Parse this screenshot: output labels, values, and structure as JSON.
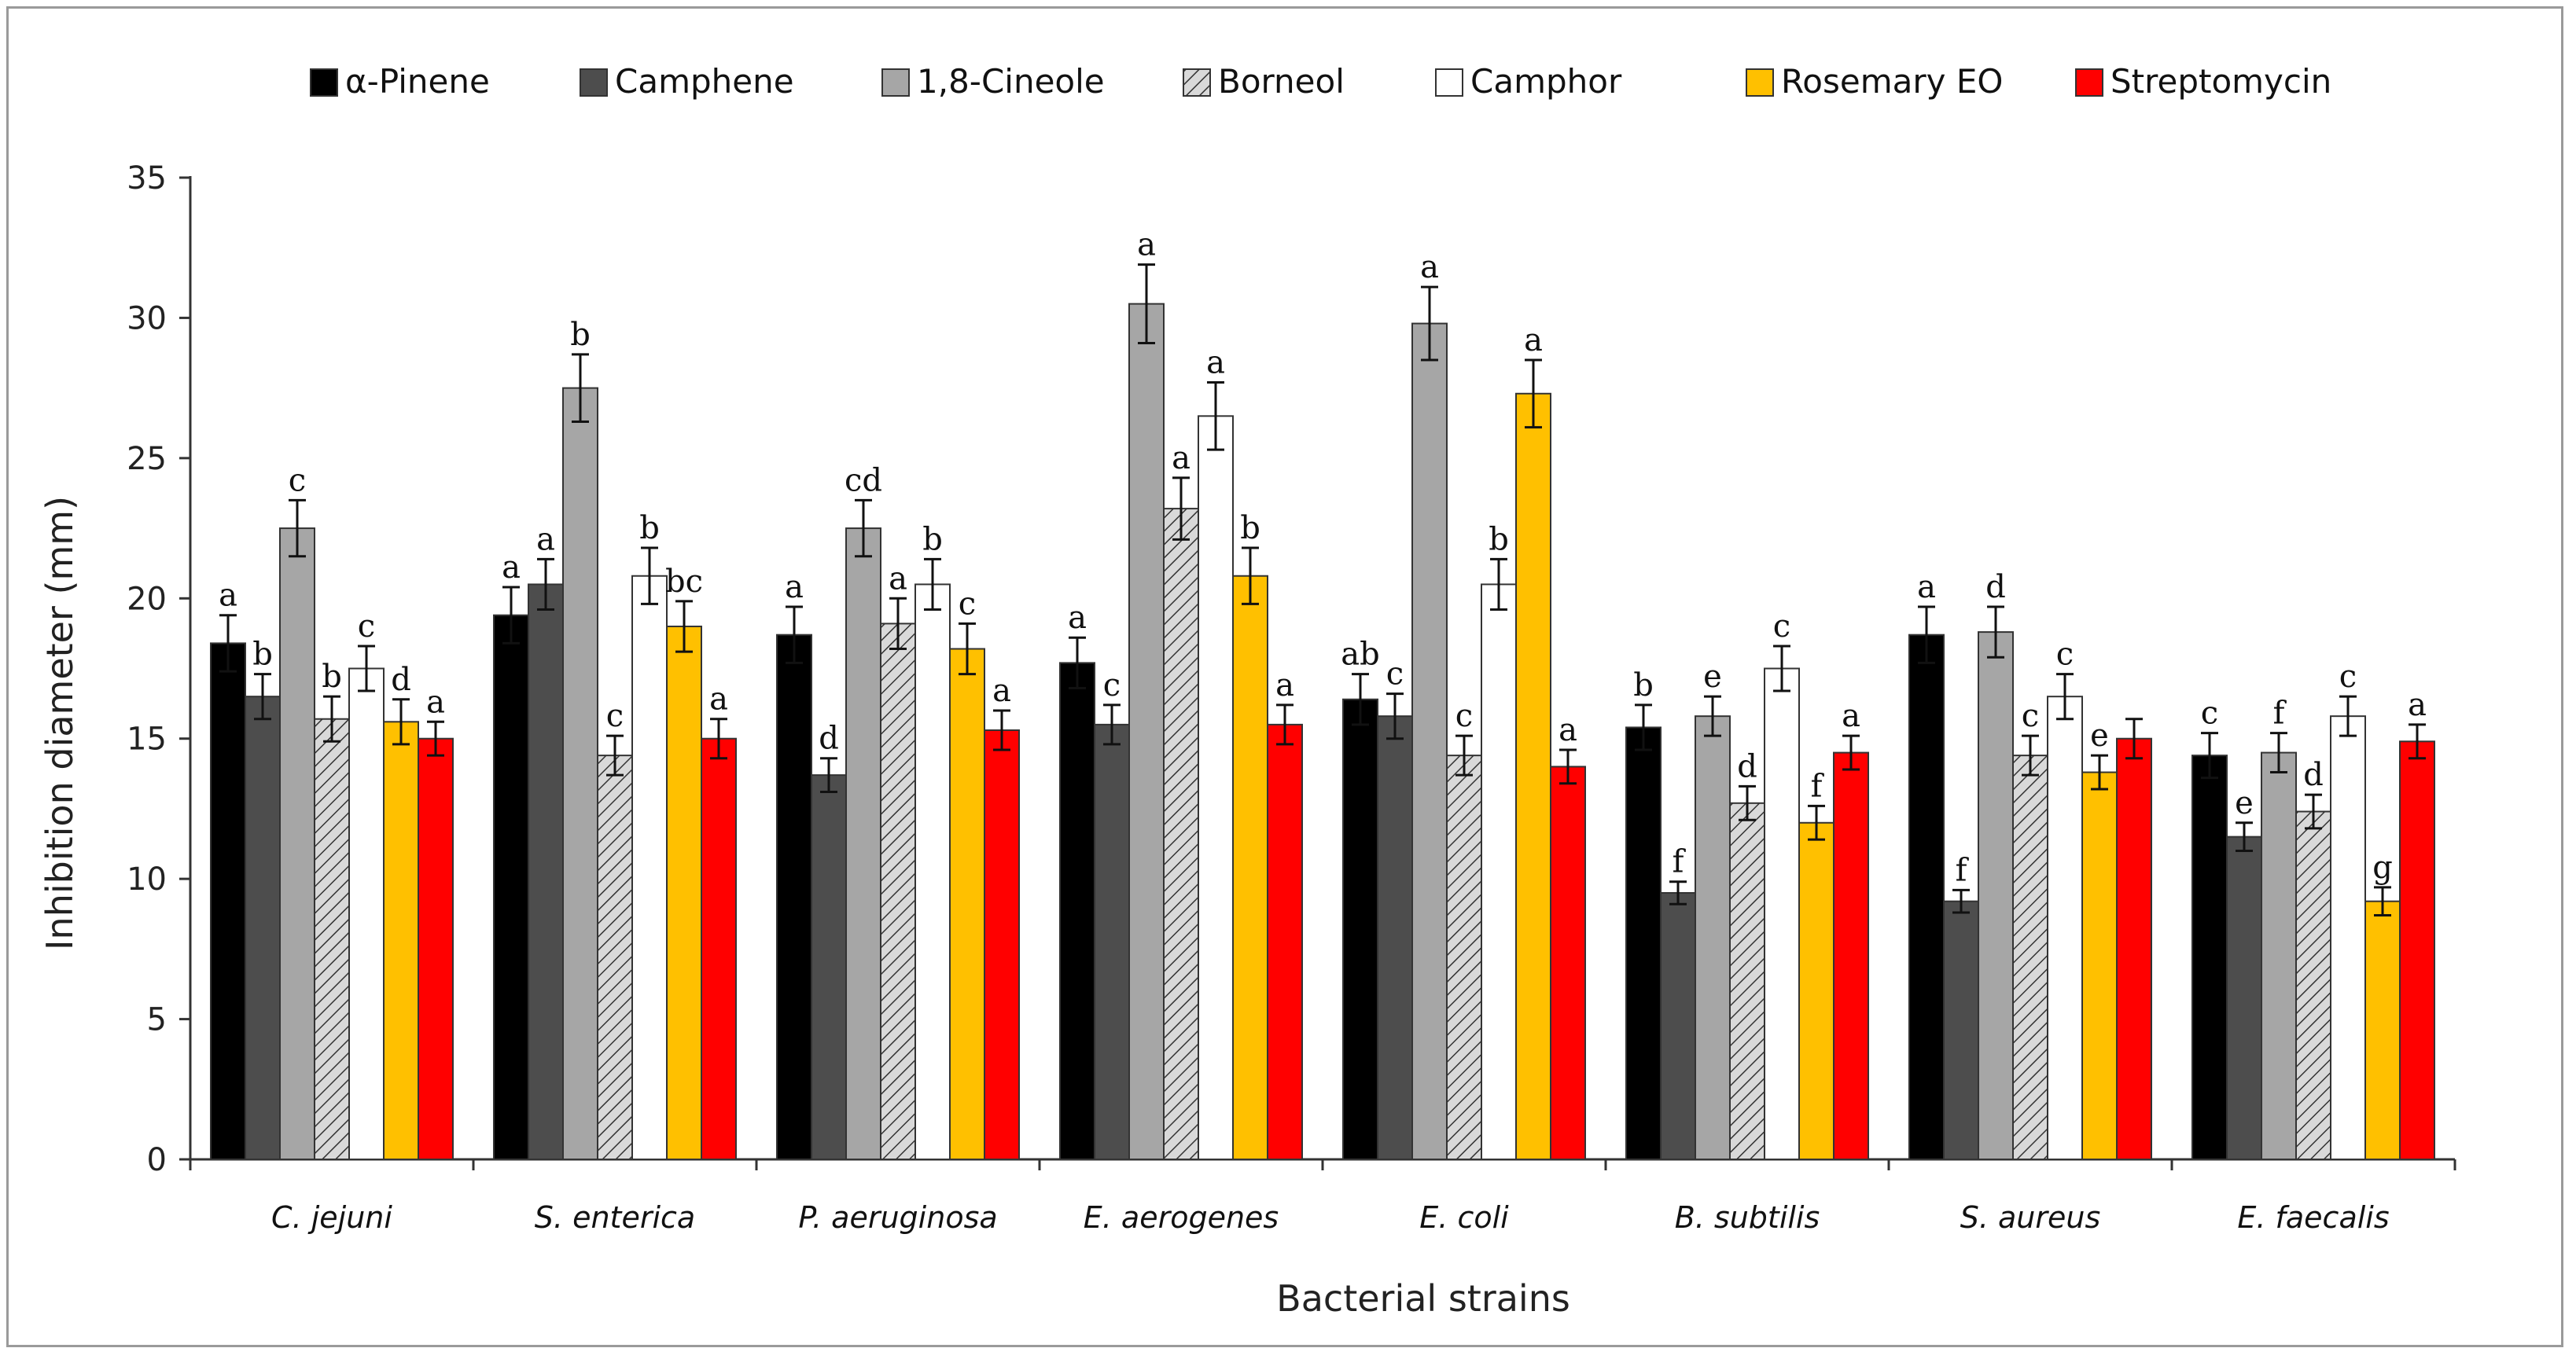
{
  "chart_data": {
    "type": "bar",
    "xlabel": "Bacterial strains",
    "ylabel": "Inhibition diameter (mm)",
    "ylim": [
      0,
      35
    ],
    "yticks": [
      0,
      5,
      10,
      15,
      20,
      25,
      30,
      35
    ],
    "legend_position": "top",
    "categories": [
      "C. jejuni",
      "S. enterica",
      "P. aeruginosa",
      "E. aerogenes",
      "E. coli",
      "B. subtilis",
      "S. aureus",
      "E. faecalis"
    ],
    "series": [
      {
        "name": "α-Pinene",
        "color": "#000000",
        "pattern": "solid",
        "values": [
          18.4,
          19.4,
          18.7,
          17.7,
          16.4,
          15.4,
          18.7,
          14.4
        ],
        "errors": [
          1.0,
          1.0,
          1.0,
          0.9,
          0.9,
          0.8,
          1.0,
          0.8
        ],
        "labels": [
          "a",
          "a",
          "a",
          "a",
          "ab",
          "b",
          "a",
          "c"
        ]
      },
      {
        "name": "Camphene",
        "color": "#4d4d4d",
        "pattern": "solid",
        "values": [
          16.5,
          20.5,
          13.7,
          15.5,
          15.8,
          9.5,
          9.2,
          11.5
        ],
        "errors": [
          0.8,
          0.9,
          0.6,
          0.7,
          0.8,
          0.4,
          0.4,
          0.5
        ],
        "labels": [
          "b",
          "a",
          "d",
          "c",
          "c",
          "f",
          "f",
          "e"
        ]
      },
      {
        "name": "1,8-Cineole",
        "color": "#a6a6a6",
        "pattern": "solid",
        "values": [
          22.5,
          27.5,
          22.5,
          30.5,
          29.8,
          15.8,
          18.8,
          14.5
        ],
        "errors": [
          1.0,
          1.2,
          1.0,
          1.4,
          1.3,
          0.7,
          0.9,
          0.7
        ],
        "labels": [
          "c",
          "b",
          "cd",
          "a",
          "a",
          "e",
          "d",
          "f"
        ]
      },
      {
        "name": "Borneol",
        "color": "#bfbfbf",
        "pattern": "hatch",
        "values": [
          15.7,
          14.4,
          19.1,
          23.2,
          14.4,
          12.7,
          14.4,
          12.4
        ],
        "errors": [
          0.8,
          0.7,
          0.9,
          1.1,
          0.7,
          0.6,
          0.7,
          0.6
        ],
        "labels": [
          "b",
          "c",
          "a",
          "a",
          "c",
          "d",
          "c",
          "d"
        ]
      },
      {
        "name": "Camphor",
        "color": "#ffffff",
        "pattern": "solid",
        "values": [
          17.5,
          20.8,
          20.5,
          26.5,
          20.5,
          17.5,
          16.5,
          15.8
        ],
        "errors": [
          0.8,
          1.0,
          0.9,
          1.2,
          0.9,
          0.8,
          0.8,
          0.7
        ],
        "labels": [
          "c",
          "b",
          "b",
          "a",
          "b",
          "c",
          "c",
          "c"
        ]
      },
      {
        "name": "Rosemary EO",
        "color": "#ffc000",
        "pattern": "solid",
        "values": [
          15.6,
          19.0,
          18.2,
          20.8,
          27.3,
          12.0,
          13.8,
          9.2
        ],
        "errors": [
          0.8,
          0.9,
          0.9,
          1.0,
          1.2,
          0.6,
          0.6,
          0.5
        ],
        "labels": [
          "d",
          "bc",
          "c",
          "b",
          "a",
          "f",
          "e",
          "g"
        ]
      },
      {
        "name": "Streptomycin",
        "color": "#ff0000",
        "pattern": "solid",
        "values": [
          15.0,
          15.0,
          15.3,
          15.5,
          14.0,
          14.5,
          15.0,
          14.9
        ],
        "errors": [
          0.6,
          0.7,
          0.7,
          0.7,
          0.6,
          0.6,
          0.7,
          0.6
        ],
        "labels": [
          "a",
          "a",
          "a",
          "a",
          "a",
          "a",
          "",
          "a"
        ]
      }
    ]
  }
}
